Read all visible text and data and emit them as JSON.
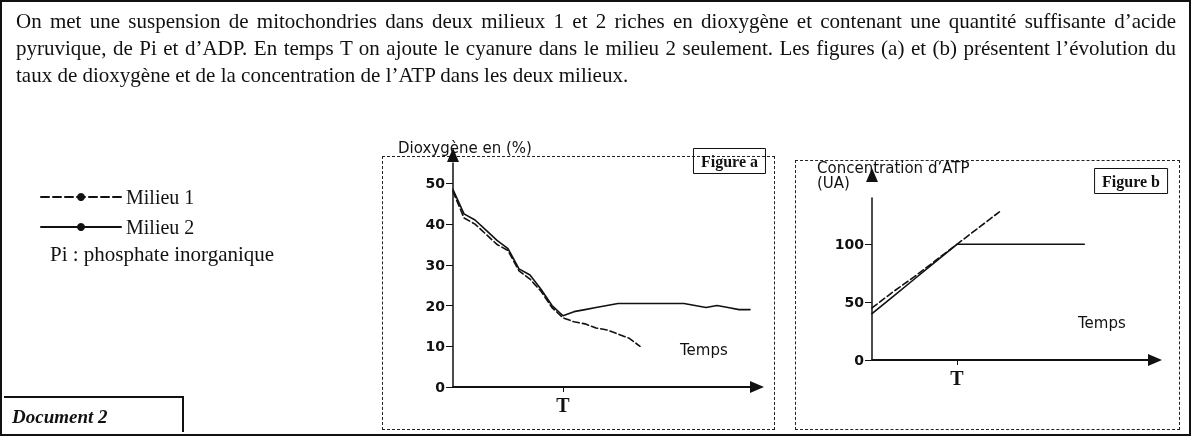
{
  "chart_data": [
    {
      "type": "other",
      "annotations": [
        "On met une suspension de mitochondries dans deux milieux 1 et 2 riches en dioxygène et contenant une quantité suffisante d’acide pyruvique, de Pi et d’ADP. En temps T on ajoute le cyanure dans le milieu 2 seulement. Les figures (a) et (b) présentent l’évolution du taux de dioxygène et de la concentration de l’ATP dans les deux milieux.",
        "Pi : phosphate inorganique",
        "Document 2"
      ]
    },
    {
      "type": "line",
      "title": "Figure a",
      "ylabel": "Dioxygène en (%)",
      "xlabel": "Temps",
      "categories": [
        null,
        null,
        null,
        null,
        null,
        null,
        null,
        null,
        null,
        null,
        "T",
        null,
        null,
        null,
        null,
        null,
        null,
        null,
        null,
        null,
        null,
        null,
        null,
        null,
        null,
        null,
        null,
        null
      ],
      "ylim": [
        0,
        55
      ],
      "yticks": [
        0,
        10,
        20,
        30,
        40,
        50
      ],
      "grid": false,
      "legend": "left",
      "marker": "none",
      "series": [
        {
          "name": "Milieu 1",
          "color": "#111111",
          "line_style": "dashed",
          "values": [
            48,
            41.5,
            40,
            37.5,
            35,
            33.5,
            28.5,
            26.5,
            23.5,
            19.5,
            17,
            16,
            15.5,
            14.5,
            14,
            13,
            12,
            10,
            null,
            null,
            null,
            null,
            null,
            null,
            null,
            null,
            null,
            null
          ]
        },
        {
          "name": "Milieu 2",
          "color": "#111111",
          "line_style": "solid",
          "values": [
            48.5,
            42.5,
            41,
            38.5,
            36,
            34,
            29,
            27.5,
            24,
            20,
            17.5,
            18.5,
            19,
            19.5,
            20,
            20.5,
            20.5,
            20.5,
            20.5,
            20.5,
            20.5,
            20.5,
            20,
            19.5,
            20,
            19.5,
            19,
            19
          ]
        }
      ]
    },
    {
      "type": "line",
      "title": "Figure b",
      "ylabel": "Concentration d’ATP\n(UA)",
      "xlabel": "Temps",
      "categories": [
        null,
        null,
        null,
        null,
        "T",
        null,
        null,
        null,
        null,
        null,
        null,
        null,
        null,
        null
      ],
      "ylim": [
        0,
        140
      ],
      "yticks": [
        0,
        50,
        100
      ],
      "grid": false,
      "legend": false,
      "marker": "none",
      "series": [
        {
          "color": "#111111",
          "line_style": "dashed",
          "values": [
            45,
            59,
            72,
            86,
            100,
            114,
            128,
            null,
            null,
            null,
            null,
            null,
            null,
            null
          ]
        },
        {
          "color": "#111111",
          "line_style": "solid",
          "values": [
            40,
            55,
            70,
            85,
            100,
            100,
            100,
            100,
            100,
            100,
            100,
            null,
            null,
            null
          ]
        }
      ]
    }
  ]
}
